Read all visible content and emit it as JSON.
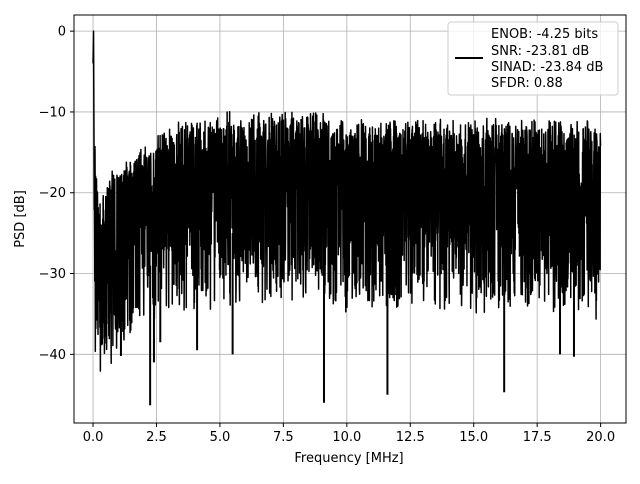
{
  "chart_data": {
    "type": "line",
    "title": "",
    "xlabel": "Frequency [MHz]",
    "ylabel": "PSD [dB]",
    "xlim": [
      -0.75,
      21.0
    ],
    "ylim": [
      -48.5,
      2.0
    ],
    "xticks": [
      0.0,
      2.5,
      5.0,
      7.5,
      10.0,
      12.5,
      15.0,
      17.5,
      20.0
    ],
    "xtick_labels": [
      "0.0",
      "2.5",
      "5.0",
      "7.5",
      "10.0",
      "12.5",
      "15.0",
      "17.5",
      "20.0"
    ],
    "yticks": [
      0,
      -10,
      -20,
      -30,
      -40
    ],
    "ytick_labels": [
      "0",
      "−10",
      "−20",
      "−30",
      "−40"
    ],
    "grid": true,
    "legend_position": "top-right",
    "legend_lines": [
      "ENOB: -4.25 bits",
      "SNR: -23.81 dB",
      "SINAD: -23.84 dB",
      "SFDR: 0.88"
    ],
    "line_color": "#000000",
    "series": [
      {
        "x": [
          0.0,
          0.02,
          0.05,
          0.1,
          0.2,
          0.3,
          0.5,
          0.8,
          1.1,
          1.5,
          2.0,
          2.3,
          2.5,
          3.0,
          3.5,
          4.0,
          4.5,
          5.0,
          5.5,
          6.0,
          6.5,
          7.0,
          7.5,
          8.0,
          8.5,
          9.0,
          9.5,
          10.0,
          10.5,
          11.0,
          11.5,
          12.0,
          12.5,
          13.0,
          13.5,
          14.0,
          14.5,
          15.0,
          15.5,
          16.0,
          16.2,
          16.5,
          17.0,
          17.5,
          18.0,
          18.5,
          19.0,
          19.5,
          20.0
        ],
        "y": [
          -4.0,
          0.0,
          -12.0,
          -18.0,
          -20.0,
          -22.0,
          -20.0,
          -18.0,
          -17.0,
          -16.0,
          -15.0,
          -15.0,
          -14.0,
          -13.0,
          -12.0,
          -12.0,
          -12.0,
          -11.0,
          -11.0,
          -11.0,
          -11.0,
          -11.0,
          -11.0,
          -11.0,
          -11.0,
          -11.0,
          -12.0,
          -12.0,
          -12.0,
          -12.0,
          -12.0,
          -12.0,
          -12.0,
          -12.0,
          -12.0,
          -12.0,
          -12.0,
          -12.0,
          -12.0,
          -12.0,
          -12.0,
          -12.0,
          -12.0,
          -12.0,
          -12.0,
          -12.0,
          -12.0,
          -12.0,
          -13.0
        ]
      }
    ],
    "notable_dips": [
      {
        "x": 1.1,
        "y": -40.2
      },
      {
        "x": 2.25,
        "y": -46.3
      },
      {
        "x": 2.4,
        "y": -41.0
      },
      {
        "x": 2.65,
        "y": -38.5
      },
      {
        "x": 4.1,
        "y": -39.5
      },
      {
        "x": 5.5,
        "y": -40.0
      },
      {
        "x": 9.1,
        "y": -46.0
      },
      {
        "x": 11.6,
        "y": -45.0
      },
      {
        "x": 16.2,
        "y": -44.7
      },
      {
        "x": 18.4,
        "y": -40.0
      },
      {
        "x": 18.95,
        "y": -40.3
      }
    ]
  }
}
